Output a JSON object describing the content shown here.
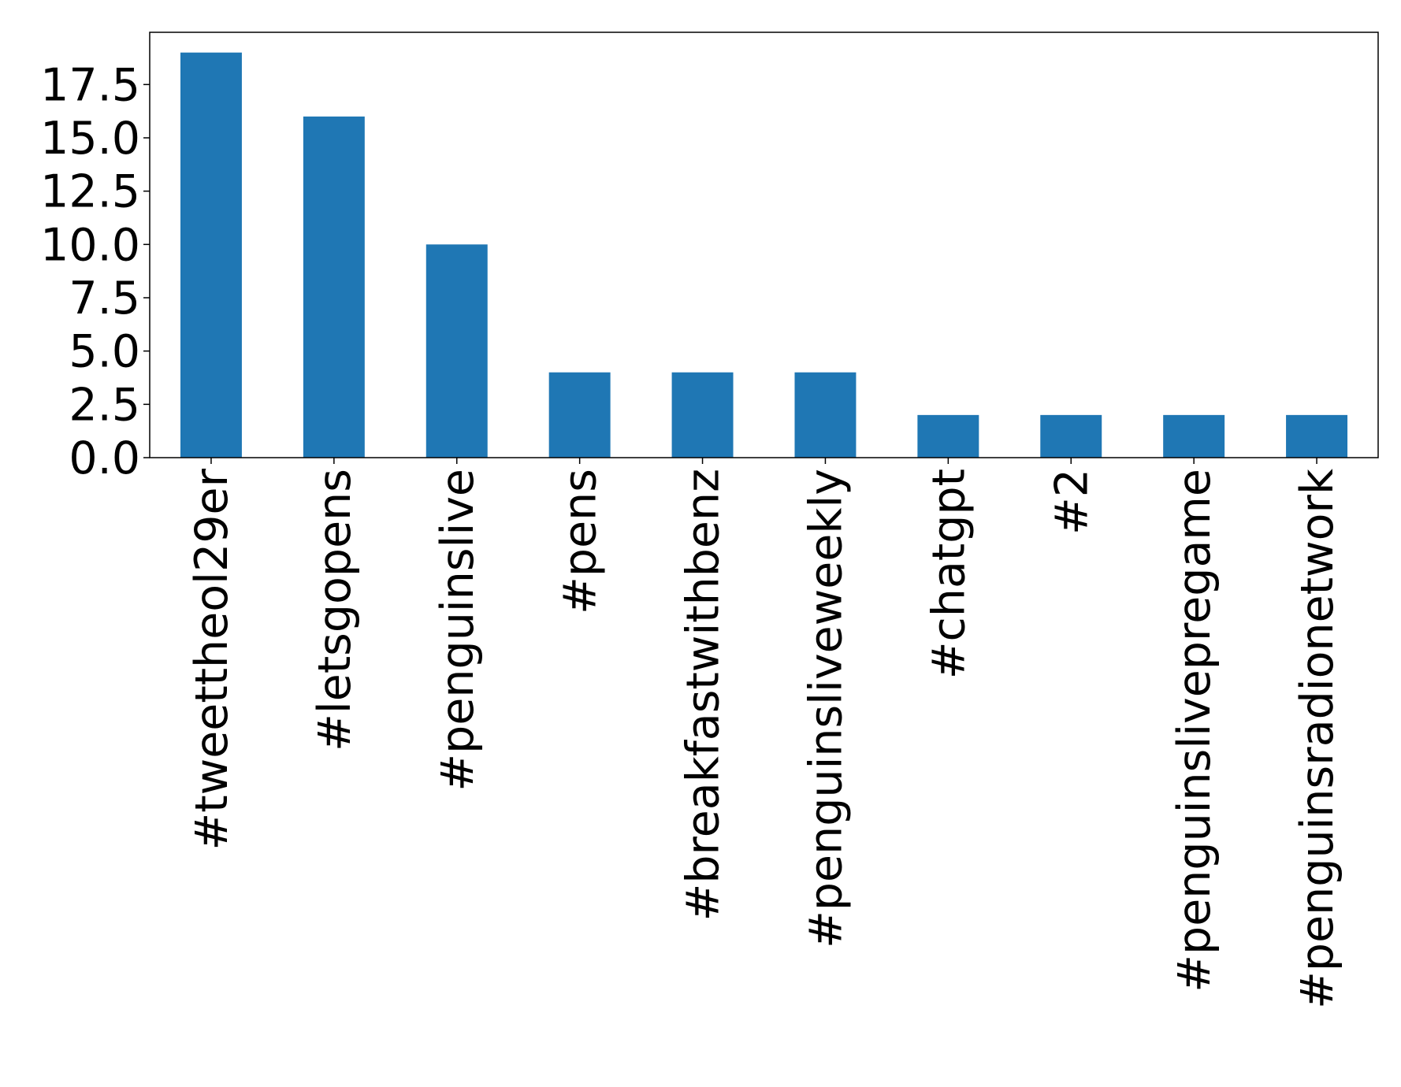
{
  "chart_data": {
    "type": "bar",
    "categories": [
      "#tweettheol29er",
      "#letsgopens",
      "#penguinslive",
      "#pens",
      "#breakfastwithbenz",
      "#penguinsliveweekly",
      "#chatgpt",
      "#2",
      "#penguinslivepregame",
      "#penguinsradionetwork"
    ],
    "values": [
      19,
      16,
      10,
      4,
      4,
      4,
      2,
      2,
      2,
      2
    ],
    "color": "#1f77b4",
    "ylim": [
      0,
      19.95
    ],
    "yticks": [
      {
        "value": 0,
        "label": "0.0"
      },
      2.5,
      {
        "value": 5,
        "label": "5.0"
      },
      7.5,
      {
        "value": 10,
        "label": "10.0"
      },
      12.5,
      {
        "value": 15,
        "label": "15.0"
      },
      17.5
    ],
    "grid": false
  }
}
